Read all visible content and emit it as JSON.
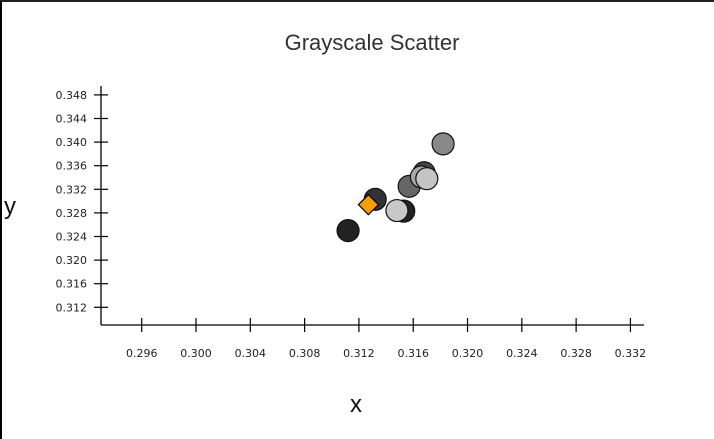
{
  "chart_data": {
    "type": "scatter",
    "title": "Grayscale Scatter",
    "xlabel": "x",
    "ylabel": "y",
    "xlim": [
      0.293,
      0.333
    ],
    "ylim": [
      0.309,
      0.349
    ],
    "x_ticks": [
      "0.296",
      "0.300",
      "0.304",
      "0.308",
      "0.312",
      "0.316",
      "0.320",
      "0.324",
      "0.328",
      "0.332"
    ],
    "y_ticks": [
      "0.348",
      "0.344",
      "0.340",
      "0.336",
      "0.332",
      "0.328",
      "0.324",
      "0.320",
      "0.316",
      "0.312"
    ],
    "grid": false,
    "points": [
      {
        "x": 0.3112,
        "y": 0.325,
        "color": "#222222",
        "marker": "circle"
      },
      {
        "x": 0.3132,
        "y": 0.3303,
        "color": "#333333",
        "marker": "circle"
      },
      {
        "x": 0.3153,
        "y": 0.3283,
        "color": "#222222",
        "marker": "circle"
      },
      {
        "x": 0.3157,
        "y": 0.3325,
        "color": "#666666",
        "marker": "circle"
      },
      {
        "x": 0.3168,
        "y": 0.3348,
        "color": "#444444",
        "marker": "circle"
      },
      {
        "x": 0.3182,
        "y": 0.3397,
        "color": "#888888",
        "marker": "circle"
      },
      {
        "x": 0.3166,
        "y": 0.3341,
        "color": "#a8a8a8",
        "marker": "circle"
      },
      {
        "x": 0.317,
        "y": 0.3338,
        "color": "#c4c4c4",
        "marker": "circle"
      },
      {
        "x": 0.3148,
        "y": 0.3284,
        "color": "#c8c8c8",
        "marker": "circle"
      },
      {
        "x": 0.3127,
        "y": 0.3294,
        "color": "#f5a000",
        "marker": "diamond"
      }
    ]
  }
}
